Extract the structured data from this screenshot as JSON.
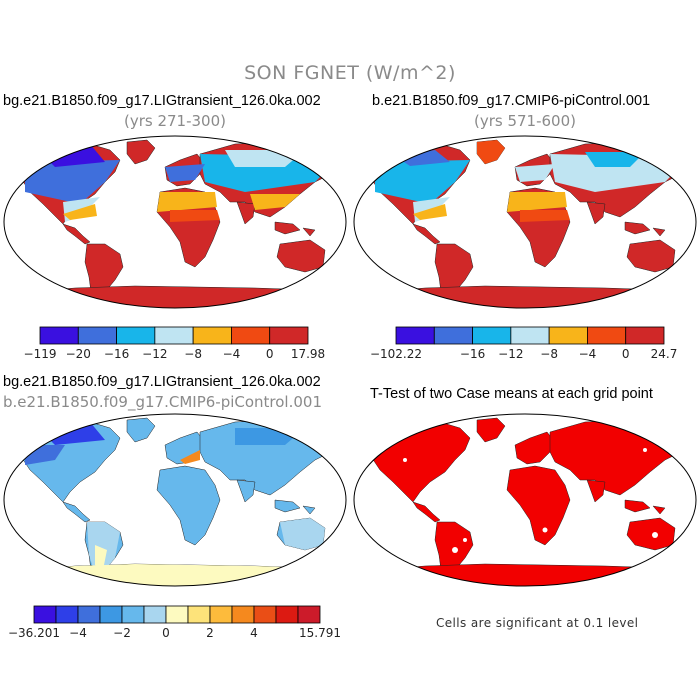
{
  "title": "SON FGNET (W/m^2)",
  "panels": [
    {
      "title": "bg.e21.B1850.f09_g17.LIGtransient_126.0ka.002",
      "subtitle": "(yrs 271-300)"
    },
    {
      "title": "b.e21.B1850.f09_g17.CMIP6-piControl.001",
      "subtitle": "(yrs 571-600)"
    },
    {
      "title": "bg.e21.B1850.f09_g17.LIGtransient_126.0ka.002",
      "subtitle": "b.e21.B1850.f09_g17.CMIP6-piControl.001"
    },
    {
      "title": "T-Test of two Case means at each grid point",
      "subtitle": ""
    }
  ],
  "colorbars": [
    {
      "colors": [
        "#3a10e0",
        "#3f6fdc",
        "#18b5ea",
        "#bfe4f2",
        "#f8b41a",
        "#f04a12",
        "#d02828"
      ],
      "labels": [
        "−119",
        "−20",
        "−16",
        "−12",
        "−8",
        "−4",
        "0",
        "17.98"
      ]
    },
    {
      "colors": [
        "#3a10e0",
        "#3f6fdc",
        "#18b5ea",
        "#bfe4f2",
        "#f8b41a",
        "#f04a12",
        "#d02828"
      ],
      "labels": [
        "−102.22",
        "",
        "−16",
        "−12",
        "−8",
        "−4",
        "0",
        "24.7"
      ]
    },
    {
      "colors": [
        "#3a10e0",
        "#2e3fe8",
        "#3f6fdc",
        "#3d98e3",
        "#66b8ec",
        "#a9d6ef",
        "#fdfac0",
        "#fde37a",
        "#fdbb3c",
        "#f5891e",
        "#ea4e16",
        "#dc1a12",
        "#cc1b2a"
      ],
      "labels": [
        "−36.201",
        "",
        "−4",
        "",
        "−2",
        "",
        "0",
        "",
        "2",
        "",
        "4",
        "",
        "",
        "15.791"
      ]
    }
  ],
  "note": "Cells are significant at 0.1 level",
  "colors": {
    "ocean": "#ffffff",
    "coast": "#000000",
    "ttest": "#f20000",
    "title_gray": "#8a8a8a"
  }
}
